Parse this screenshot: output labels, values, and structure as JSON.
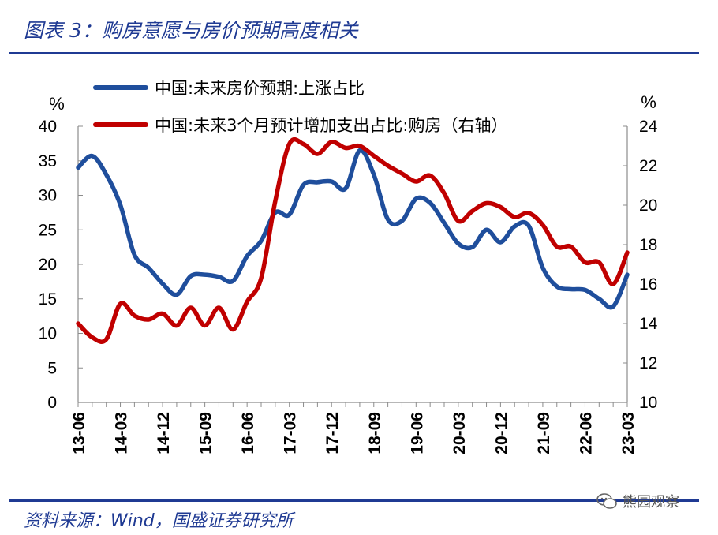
{
  "figure": {
    "title": "图表 3：购房意愿与房价预期高度相关",
    "source": "资料来源：Wind，国盛证券研究所",
    "watermark": "熊园观察"
  },
  "chart_data": {
    "type": "line",
    "x_ticks": [
      "13-06",
      "14-03",
      "14-12",
      "15-09",
      "16-06",
      "17-03",
      "17-12",
      "18-09",
      "19-06",
      "20-03",
      "20-12",
      "21-09",
      "22-06",
      "23-03"
    ],
    "x_range": [
      "2013-06",
      "2023-03"
    ],
    "y_left": {
      "label": "%",
      "lim": [
        0,
        40
      ],
      "ticks": [
        "0",
        "5",
        "10",
        "15",
        "20",
        "25",
        "30",
        "35",
        "40"
      ]
    },
    "y_right": {
      "label": "%",
      "lim": [
        10,
        24
      ],
      "ticks": [
        "10",
        "12",
        "14",
        "16",
        "18",
        "20",
        "22",
        "24"
      ]
    },
    "legend_position": "top",
    "grid": false,
    "series": [
      {
        "name": "中国:未来房价预期:上涨占比",
        "axis": "left",
        "color": "#1f4e9c",
        "x": [
          "2013-06",
          "2013-09",
          "2013-12",
          "2014-03",
          "2014-06",
          "2014-09",
          "2014-12",
          "2015-03",
          "2015-06",
          "2015-09",
          "2015-12",
          "2016-03",
          "2016-06",
          "2016-09",
          "2016-12",
          "2017-03",
          "2017-06",
          "2017-09",
          "2017-12",
          "2018-03",
          "2018-06",
          "2018-09",
          "2018-12",
          "2019-03",
          "2019-06",
          "2019-09",
          "2019-12",
          "2020-03",
          "2020-06",
          "2020-09",
          "2020-12",
          "2021-03",
          "2021-06",
          "2021-09",
          "2021-12",
          "2022-03",
          "2022-06",
          "2022-09",
          "2022-12",
          "2023-03"
        ],
        "values": [
          34,
          35.7,
          33,
          28.6,
          21.4,
          19.5,
          17.2,
          15.6,
          18.3,
          18.5,
          18.2,
          17.6,
          21.2,
          23.4,
          27.5,
          27.2,
          31.5,
          31.9,
          32,
          31,
          36.5,
          33,
          26.5,
          26.3,
          29.5,
          28.9,
          26,
          23,
          22.5,
          25,
          23.2,
          25.5,
          25.6,
          19.5,
          16.8,
          16.4,
          16.3,
          15,
          13.9,
          18.5
        ]
      },
      {
        "name": "中国:未来3个月预计增加支出占比:购房（右轴）",
        "axis": "right",
        "color": "#c00000",
        "x": [
          "2013-06",
          "2013-09",
          "2013-12",
          "2014-03",
          "2014-06",
          "2014-09",
          "2014-12",
          "2015-03",
          "2015-06",
          "2015-09",
          "2015-12",
          "2016-03",
          "2016-06",
          "2016-09",
          "2016-12",
          "2017-03",
          "2017-06",
          "2017-09",
          "2017-12",
          "2018-03",
          "2018-06",
          "2018-09",
          "2018-12",
          "2019-03",
          "2019-06",
          "2019-09",
          "2019-12",
          "2020-03",
          "2020-06",
          "2020-09",
          "2020-12",
          "2021-03",
          "2021-06",
          "2021-09",
          "2021-12",
          "2022-03",
          "2022-06",
          "2022-09",
          "2022-12",
          "2023-03"
        ],
        "values": [
          14,
          13.3,
          13.2,
          15,
          14.4,
          14.2,
          14.5,
          13.9,
          14.8,
          13.9,
          14.8,
          13.7,
          15.1,
          16.3,
          20.2,
          23.1,
          23.1,
          22.6,
          23.2,
          22.9,
          23,
          22.5,
          22,
          21.6,
          21.2,
          21.5,
          20.6,
          19.2,
          19.7,
          20.1,
          19.9,
          19.4,
          19.6,
          19,
          17.9,
          17.9,
          17.1,
          17.1,
          16,
          17.6
        ]
      }
    ]
  }
}
